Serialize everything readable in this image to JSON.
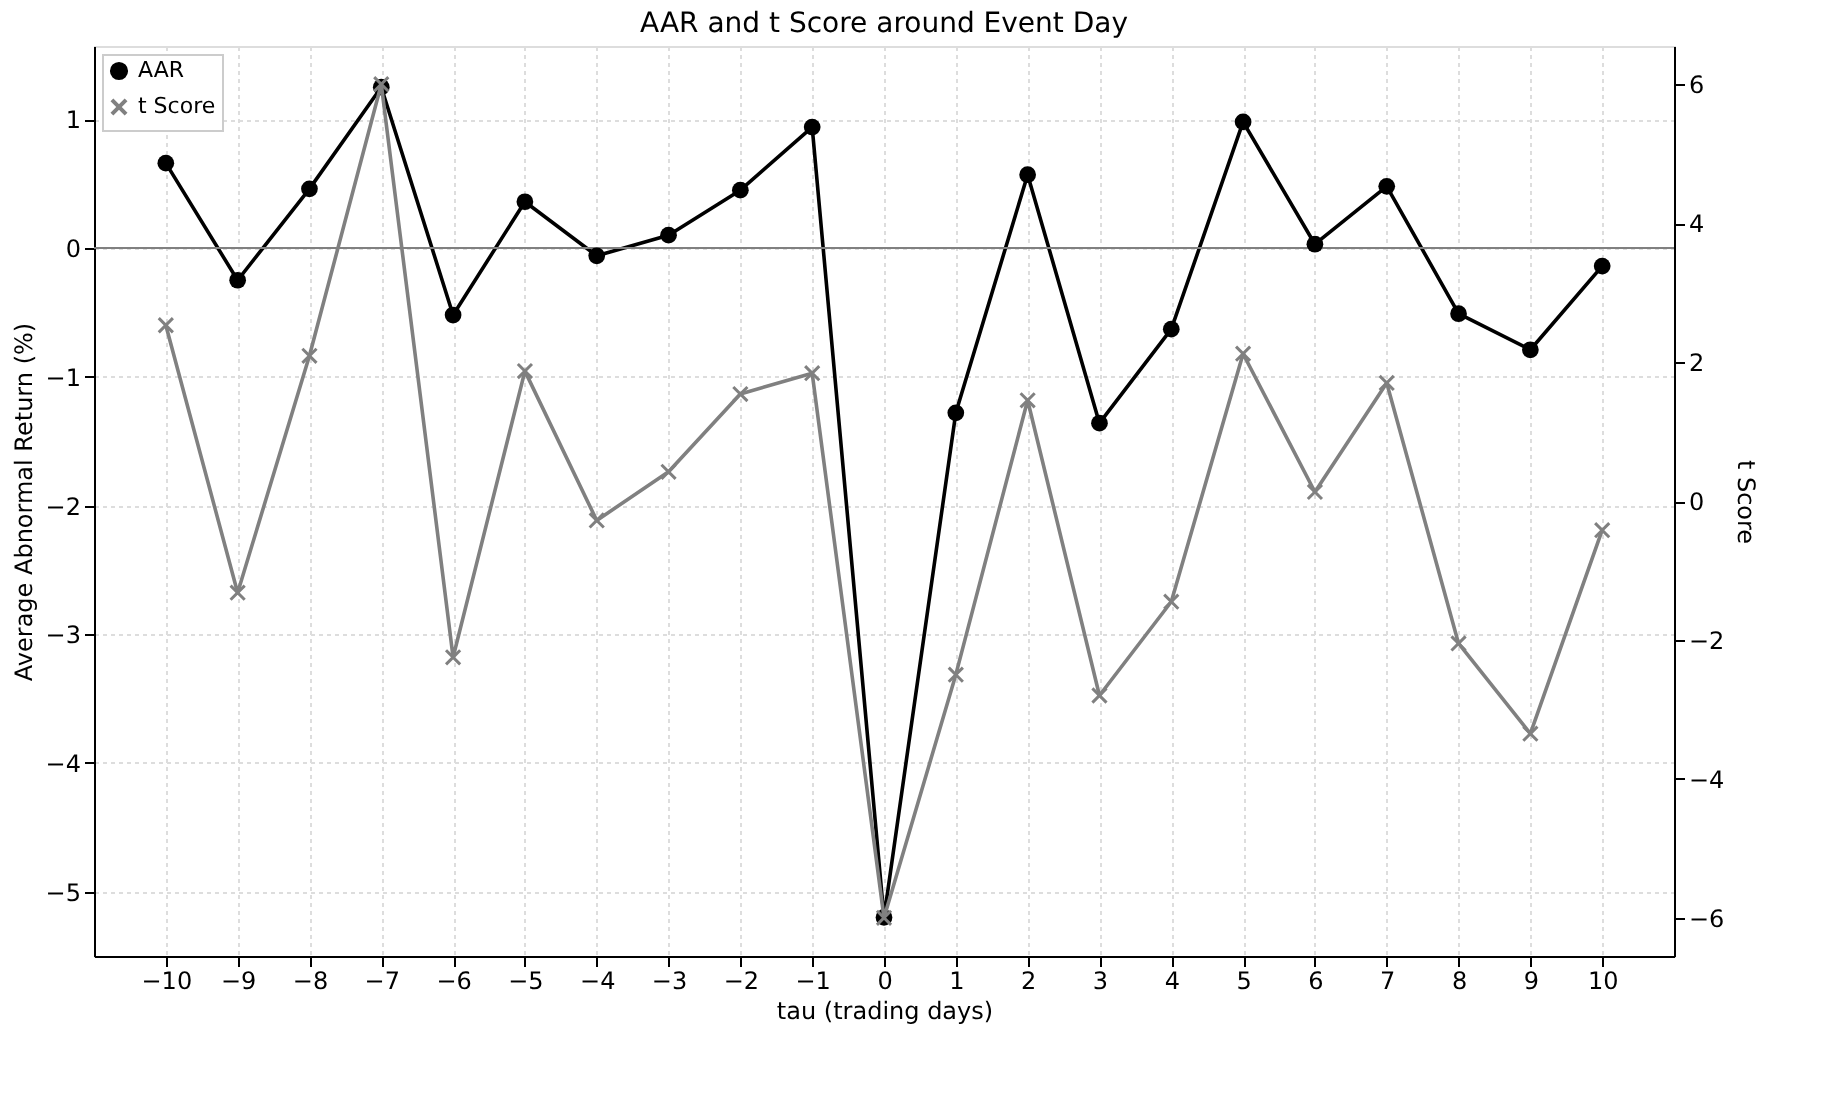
{
  "chart_data": {
    "type": "line",
    "title": "AAR and t Score around Event Day",
    "xlabel": "tau (trading days)",
    "ylabel": "Average Abnormal Return (%)",
    "y2label": "t Score",
    "x": [
      -10,
      -9,
      -8,
      -7,
      -6,
      -5,
      -4,
      -3,
      -2,
      -1,
      0,
      1,
      2,
      3,
      4,
      5,
      6,
      7,
      8,
      9,
      10
    ],
    "series": [
      {
        "name": "AAR",
        "color": "#000000",
        "marker": "circle",
        "values": [
          0.66,
          -0.25,
          0.46,
          1.25,
          -0.52,
          0.36,
          -0.06,
          0.1,
          0.45,
          0.94,
          -5.2,
          -1.28,
          0.57,
          -1.36,
          -0.63,
          0.98,
          0.03,
          0.48,
          -0.51,
          -0.79,
          -0.14
        ]
      },
      {
        "name": "t Score",
        "color": "#808080",
        "marker": "cross",
        "axis": "y2",
        "values": [
          2.53,
          -1.32,
          2.09,
          6.0,
          -2.25,
          1.87,
          -0.28,
          0.42,
          1.54,
          1.84,
          -6.0,
          -2.5,
          1.45,
          -2.8,
          -1.45,
          2.12,
          0.13,
          1.7,
          -2.05,
          -3.35,
          -0.42
        ]
      }
    ],
    "xlim": [
      -11,
      11
    ],
    "xticks": [
      -10,
      -9,
      -8,
      -7,
      -6,
      -5,
      -4,
      -3,
      -2,
      -1,
      0,
      1,
      2,
      3,
      4,
      5,
      6,
      7,
      8,
      9,
      10
    ],
    "ylim": [
      -5.5,
      1.57
    ],
    "yticks": [
      -5,
      -4,
      -3,
      -2,
      -1,
      0,
      1
    ],
    "y2lim": [
      -6.55,
      6.55
    ],
    "y2ticks": [
      -6,
      -4,
      -2,
      0,
      2,
      4,
      6
    ],
    "ref_lines": [
      {
        "axis": "y",
        "value": 0,
        "color": "#808080"
      }
    ],
    "grid": true,
    "legend": "top left"
  }
}
